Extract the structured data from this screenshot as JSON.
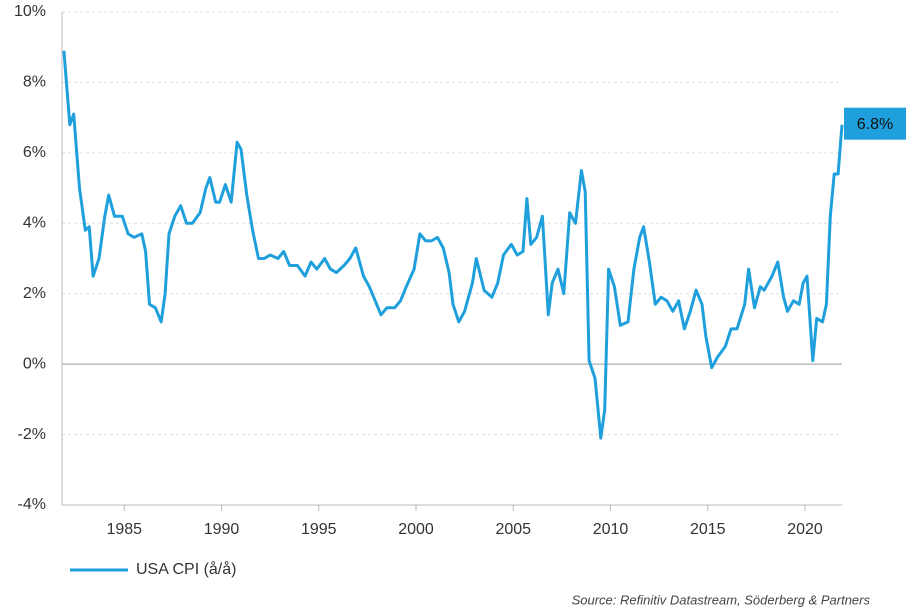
{
  "chart_data": {
    "type": "line",
    "x": [
      1981.9,
      1982.2,
      1982.4,
      1982.7,
      1983.0,
      1983.2,
      1983.4,
      1983.7,
      1984.0,
      1984.2,
      1984.5,
      1984.9,
      1985.2,
      1985.5,
      1985.9,
      1986.1,
      1986.3,
      1986.6,
      1986.9,
      1987.1,
      1987.3,
      1987.6,
      1987.9,
      1988.2,
      1988.5,
      1988.9,
      1989.2,
      1989.4,
      1989.7,
      1989.9,
      1990.2,
      1990.5,
      1990.8,
      1991.0,
      1991.3,
      1991.6,
      1991.9,
      1992.2,
      1992.5,
      1992.9,
      1993.2,
      1993.5,
      1993.9,
      1994.3,
      1994.6,
      1994.9,
      1995.3,
      1995.6,
      1995.9,
      1996.3,
      1996.6,
      1996.9,
      1997.3,
      1997.6,
      1997.9,
      1998.2,
      1998.5,
      1998.9,
      1999.2,
      1999.5,
      1999.9,
      2000.2,
      2000.5,
      2000.8,
      2001.1,
      2001.4,
      2001.7,
      2001.9,
      2002.2,
      2002.5,
      2002.9,
      2003.1,
      2003.5,
      2003.9,
      2004.2,
      2004.5,
      2004.9,
      2005.2,
      2005.5,
      2005.7,
      2005.9,
      2006.2,
      2006.5,
      2006.8,
      2007.0,
      2007.3,
      2007.6,
      2007.9,
      2008.2,
      2008.5,
      2008.7,
      2008.9,
      2009.2,
      2009.5,
      2009.7,
      2009.9,
      2010.2,
      2010.5,
      2010.9,
      2011.2,
      2011.5,
      2011.7,
      2012.0,
      2012.3,
      2012.6,
      2012.9,
      2013.2,
      2013.5,
      2013.8,
      2014.1,
      2014.4,
      2014.7,
      2014.9,
      2015.2,
      2015.5,
      2015.9,
      2016.2,
      2016.5,
      2016.9,
      2017.1,
      2017.4,
      2017.7,
      2017.9,
      2018.3,
      2018.6,
      2018.9,
      2019.1,
      2019.4,
      2019.7,
      2019.9,
      2020.1,
      2020.4,
      2020.6,
      2020.9,
      2021.1,
      2021.3,
      2021.5,
      2021.7,
      2021.9
    ],
    "series": [
      {
        "name": "USA CPI (å/å)",
        "color": "#1fa0dc",
        "values": [
          8.9,
          6.8,
          7.1,
          5.0,
          3.8,
          3.9,
          2.5,
          3.0,
          4.2,
          4.8,
          4.2,
          4.2,
          3.7,
          3.6,
          3.7,
          3.2,
          1.7,
          1.6,
          1.2,
          2.0,
          3.7,
          4.2,
          4.5,
          4.0,
          4.0,
          4.3,
          5.0,
          5.3,
          4.6,
          4.6,
          5.1,
          4.6,
          6.3,
          6.1,
          4.8,
          3.8,
          3.0,
          3.0,
          3.1,
          3.0,
          3.2,
          2.8,
          2.8,
          2.5,
          2.9,
          2.7,
          3.0,
          2.7,
          2.6,
          2.8,
          3.0,
          3.3,
          2.5,
          2.2,
          1.8,
          1.4,
          1.6,
          1.6,
          1.8,
          2.2,
          2.7,
          3.7,
          3.5,
          3.5,
          3.6,
          3.3,
          2.6,
          1.7,
          1.2,
          1.5,
          2.3,
          3.0,
          2.1,
          1.9,
          2.3,
          3.1,
          3.4,
          3.1,
          3.2,
          4.7,
          3.4,
          3.6,
          4.2,
          1.4,
          2.3,
          2.7,
          2.0,
          4.3,
          4.0,
          5.5,
          4.9,
          0.1,
          -0.4,
          -2.1,
          -1.3,
          2.7,
          2.2,
          1.1,
          1.2,
          2.7,
          3.6,
          3.9,
          2.9,
          1.7,
          1.9,
          1.8,
          1.5,
          1.8,
          1.0,
          1.5,
          2.1,
          1.7,
          0.8,
          -0.1,
          0.2,
          0.5,
          1.0,
          1.0,
          1.7,
          2.7,
          1.6,
          2.2,
          2.1,
          2.5,
          2.9,
          1.9,
          1.5,
          1.8,
          1.7,
          2.3,
          2.5,
          0.1,
          1.3,
          1.2,
          1.7,
          4.2,
          5.4,
          5.4,
          6.8
        ]
      }
    ],
    "annotations": [
      {
        "text": "6.8%"
      }
    ],
    "xlim": [
      1981.8,
      2021.9
    ],
    "xticks": [
      1985,
      1990,
      1995,
      2000,
      2005,
      2010,
      2015,
      2020
    ],
    "ylim": [
      -4,
      10
    ],
    "yticks": [
      {
        "value": -4,
        "label": "-4%"
      },
      {
        "value": -2,
        "label": "-2%"
      },
      {
        "value": 0,
        "label": "0%"
      },
      {
        "value": 2,
        "label": "2%"
      },
      {
        "value": 4,
        "label": "4%"
      },
      {
        "value": 6,
        "label": "6%"
      },
      {
        "value": 8,
        "label": "8%"
      },
      {
        "value": 10,
        "label": "10%"
      }
    ],
    "grid": true,
    "legend": "bottom-left",
    "source": "Source: Refinitiv Datastream, Söderberg & Partners"
  }
}
